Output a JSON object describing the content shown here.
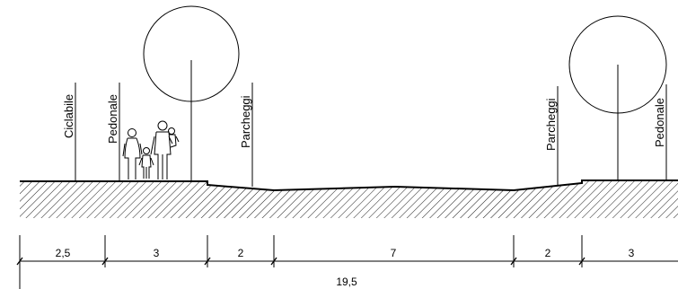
{
  "zone_labels": {
    "ciclabile": "Ciclabile",
    "pedonale_left": "Pedonale",
    "parcheggi_left": "Parcheggi",
    "parcheggi_right": "Parcheggi",
    "pedonale_right": "Pedonale"
  },
  "dimensions": {
    "segments": [
      "2,5",
      "3",
      "2",
      "7",
      "2",
      "3"
    ],
    "total": "19,5"
  },
  "colors": {
    "ink": "#000000",
    "background": "#ffffff"
  },
  "icons": [
    "tree-icon",
    "pedestrians-icon"
  ]
}
